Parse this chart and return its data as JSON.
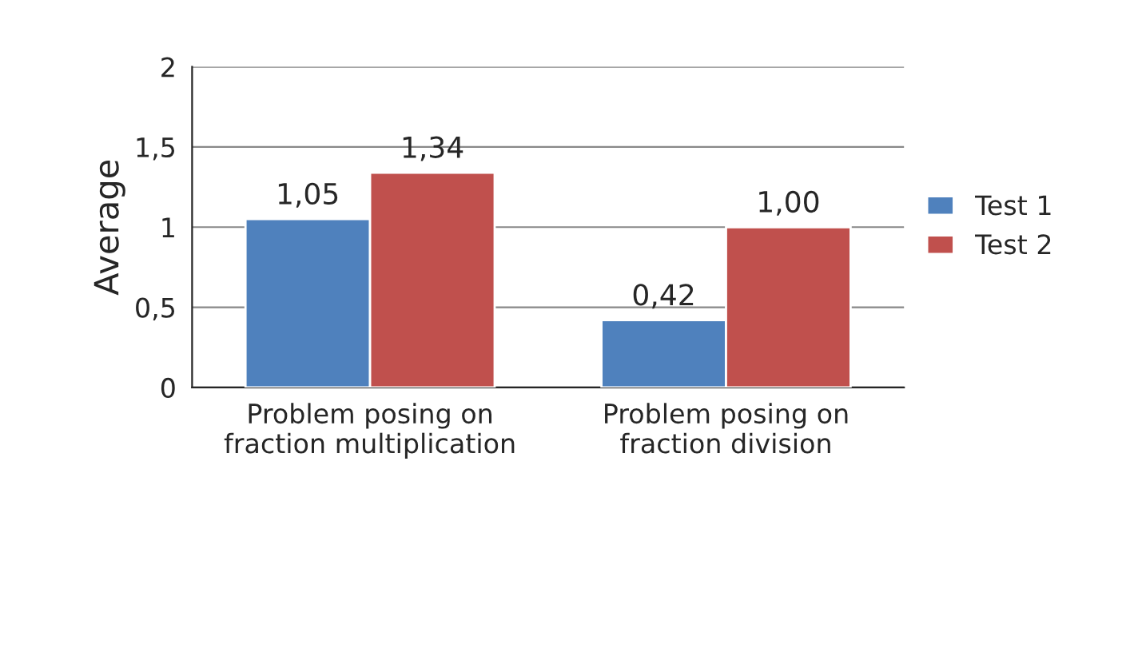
{
  "chart_data": {
    "type": "bar",
    "ylabel": "Average",
    "categories": [
      "Problem posing on fraction multiplication",
      "Problem posing on fraction division"
    ],
    "series": [
      {
        "name": "Test 1",
        "color": "#4f81bd",
        "values": [
          1.05,
          0.42
        ],
        "value_labels": [
          "1,05",
          "0,42"
        ]
      },
      {
        "name": "Test 2",
        "color": "#c0504d",
        "values": [
          1.34,
          1.0
        ],
        "value_labels": [
          "1,34",
          "1,00"
        ]
      }
    ],
    "ylim": [
      0,
      2
    ],
    "yticks": [
      0,
      {
        "value": 0.5,
        "label": "0,5"
      },
      1,
      {
        "value": 1.5,
        "label": "1,5"
      },
      2
    ],
    "grid": "y",
    "legend": "right"
  }
}
